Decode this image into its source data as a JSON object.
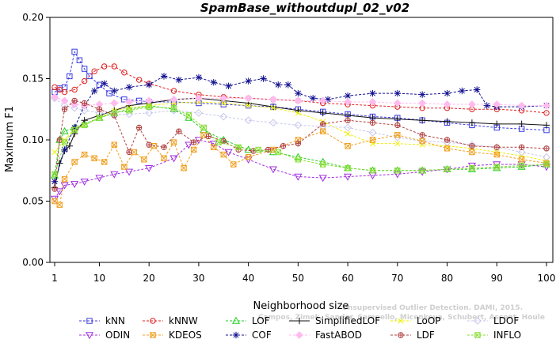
{
  "chart_data": {
    "type": "line",
    "title": "SpamBase_withoutdupl_02_v02",
    "xlabel": "Neighborhood size",
    "ylabel": "Maximum F1",
    "xlim": [
      1,
      100
    ],
    "ylim": [
      0.0,
      0.2
    ],
    "xticks": [
      1,
      10,
      20,
      30,
      40,
      50,
      60,
      70,
      80,
      90,
      100
    ],
    "yticks": [
      "0.00",
      "0.05",
      "0.10",
      "0.15",
      "0.20"
    ],
    "grid": false,
    "legend_position": "bottom",
    "watermark": [
      "Unsupervised Outlier Detection. DAMI, 2015.",
      "Campos, Zimek, Sander, Campello, Micenkova, Schubert, Assent, Houle"
    ],
    "series": [
      {
        "name": "kNN",
        "color": "#3a3adf",
        "marker": "square",
        "dash": "3,2",
        "x": [
          1,
          2,
          3,
          4,
          5,
          6,
          7,
          8,
          10,
          12,
          15,
          18,
          20,
          25,
          30,
          35,
          40,
          45,
          50,
          55,
          60,
          65,
          70,
          75,
          80,
          85,
          90,
          95,
          100
        ],
        "y": [
          0.139,
          0.142,
          0.143,
          0.152,
          0.172,
          0.165,
          0.158,
          0.152,
          0.145,
          0.138,
          0.133,
          0.132,
          0.131,
          0.131,
          0.13,
          0.129,
          0.128,
          0.127,
          0.125,
          0.123,
          0.121,
          0.119,
          0.118,
          0.116,
          0.114,
          0.112,
          0.11,
          0.109,
          0.108
        ]
      },
      {
        "name": "kNNW",
        "color": "#e02020",
        "marker": "circle",
        "dash": "3,2",
        "x": [
          1,
          2,
          3,
          5,
          7,
          9,
          11,
          13,
          15,
          18,
          20,
          25,
          30,
          35,
          40,
          45,
          50,
          55,
          60,
          65,
          70,
          75,
          80,
          85,
          90,
          95,
          100
        ],
        "y": [
          0.143,
          0.141,
          0.139,
          0.141,
          0.148,
          0.156,
          0.16,
          0.16,
          0.155,
          0.149,
          0.146,
          0.14,
          0.137,
          0.135,
          0.134,
          0.133,
          0.132,
          0.13,
          0.129,
          0.128,
          0.127,
          0.126,
          0.126,
          0.125,
          0.125,
          0.124,
          0.122
        ]
      },
      {
        "name": "LOF",
        "color": "#22cc22",
        "marker": "triangle",
        "dash": "3,2",
        "x": [
          1,
          2,
          3,
          5,
          7,
          10,
          13,
          16,
          20,
          25,
          28,
          31,
          35,
          40,
          45,
          50,
          55,
          60,
          65,
          70,
          75,
          80,
          85,
          90,
          95,
          100
        ],
        "y": [
          0.071,
          0.1,
          0.107,
          0.11,
          0.113,
          0.118,
          0.122,
          0.125,
          0.128,
          0.125,
          0.118,
          0.108,
          0.1,
          0.092,
          0.09,
          0.086,
          0.082,
          0.077,
          0.075,
          0.075,
          0.075,
          0.076,
          0.076,
          0.077,
          0.078,
          0.08
        ]
      },
      {
        "name": "SimplifiedLOF",
        "color": "#111111",
        "marker": "plus",
        "dash": "",
        "x": [
          1,
          2,
          3,
          4,
          5,
          7,
          10,
          13,
          16,
          20,
          25,
          30,
          35,
          40,
          45,
          50,
          55,
          60,
          65,
          70,
          75,
          80,
          85,
          90,
          95,
          100
        ],
        "y": [
          0.061,
          0.081,
          0.091,
          0.095,
          0.105,
          0.116,
          0.12,
          0.124,
          0.128,
          0.13,
          0.133,
          0.134,
          0.132,
          0.13,
          0.127,
          0.124,
          0.122,
          0.12,
          0.118,
          0.117,
          0.116,
          0.115,
          0.114,
          0.113,
          0.113,
          0.112
        ]
      },
      {
        "name": "LoOP",
        "color": "#eeee00",
        "marker": "x",
        "dash": "3,2",
        "x": [
          1,
          3,
          5,
          7,
          10,
          13,
          16,
          20,
          25,
          30,
          35,
          40,
          45,
          50,
          55,
          60,
          65,
          70,
          75,
          80,
          85,
          90,
          95,
          100
        ],
        "y": [
          0.09,
          0.1,
          0.109,
          0.112,
          0.118,
          0.124,
          0.126,
          0.128,
          0.13,
          0.131,
          0.13,
          0.128,
          0.126,
          0.122,
          0.115,
          0.105,
          0.097,
          0.097,
          0.096,
          0.095,
          0.093,
          0.09,
          0.087,
          0.083
        ]
      },
      {
        "name": "LDOF",
        "color": "#c8c8ee",
        "marker": "diamond",
        "dash": "3,2",
        "x": [
          1,
          3,
          5,
          7,
          10,
          13,
          16,
          20,
          25,
          30,
          35,
          40,
          45,
          50,
          55,
          60,
          65,
          70,
          75,
          80,
          85,
          90,
          95,
          100
        ],
        "y": [
          0.134,
          0.128,
          0.126,
          0.124,
          0.122,
          0.121,
          0.121,
          0.122,
          0.124,
          0.122,
          0.119,
          0.116,
          0.114,
          0.112,
          0.111,
          0.11,
          0.106,
          0.102,
          0.099,
          0.098,
          0.096,
          0.094,
          0.09,
          0.086
        ]
      },
      {
        "name": "ODIN",
        "color": "#a030e0",
        "marker": "triangle-down",
        "dash": "3,2",
        "x": [
          1,
          2,
          3,
          5,
          7,
          10,
          13,
          16,
          20,
          25,
          28,
          30,
          33,
          36,
          40,
          45,
          50,
          55,
          60,
          65,
          70,
          75,
          80,
          85,
          90,
          95,
          100
        ],
        "y": [
          0.052,
          0.058,
          0.063,
          0.064,
          0.066,
          0.069,
          0.072,
          0.074,
          0.077,
          0.085,
          0.096,
          0.1,
          0.097,
          0.09,
          0.084,
          0.076,
          0.07,
          0.069,
          0.07,
          0.071,
          0.072,
          0.074,
          0.076,
          0.079,
          0.08,
          0.08,
          0.078
        ]
      },
      {
        "name": "KDEOS",
        "color": "#f0a020",
        "marker": "square-x",
        "dash": "3,2",
        "x": [
          1,
          2,
          3,
          5,
          7,
          9,
          11,
          13,
          15,
          17,
          19,
          21,
          23,
          25,
          27,
          29,
          31,
          33,
          35,
          37,
          40,
          45,
          50,
          55,
          60,
          65,
          70,
          75,
          80,
          85,
          90,
          95,
          100
        ],
        "y": [
          0.05,
          0.047,
          0.068,
          0.082,
          0.088,
          0.085,
          0.082,
          0.096,
          0.078,
          0.09,
          0.084,
          0.095,
          0.085,
          0.098,
          0.077,
          0.092,
          0.104,
          0.094,
          0.088,
          0.08,
          0.086,
          0.092,
          0.1,
          0.107,
          0.095,
          0.1,
          0.104,
          0.099,
          0.093,
          0.09,
          0.088,
          0.084,
          0.081
        ]
      },
      {
        "name": "COF",
        "color": "#101090",
        "marker": "asterisk",
        "dash": "3,2",
        "x": [
          1,
          3,
          5,
          7,
          9,
          11,
          13,
          16,
          20,
          23,
          26,
          30,
          33,
          36,
          40,
          43,
          46,
          48,
          50,
          53,
          56,
          60,
          65,
          70,
          75,
          80,
          83,
          86,
          88,
          90,
          95,
          100
        ],
        "y": [
          0.066,
          0.092,
          0.11,
          0.128,
          0.14,
          0.146,
          0.14,
          0.143,
          0.145,
          0.152,
          0.149,
          0.151,
          0.147,
          0.144,
          0.148,
          0.15,
          0.145,
          0.145,
          0.138,
          0.134,
          0.133,
          0.136,
          0.138,
          0.138,
          0.137,
          0.138,
          0.14,
          0.141,
          0.128,
          0.127,
          0.127,
          0.128
        ]
      },
      {
        "name": "FastABOD",
        "color": "#ffbbee",
        "marker": "diamond-filled",
        "dash": "3,2",
        "x": [
          1,
          3,
          5,
          7,
          10,
          13,
          16,
          20,
          25,
          30,
          35,
          40,
          45,
          50,
          55,
          60,
          65,
          70,
          75,
          80,
          85,
          90,
          95,
          100
        ],
        "y": [
          0.135,
          0.132,
          0.129,
          0.128,
          0.129,
          0.13,
          0.131,
          0.132,
          0.133,
          0.134,
          0.134,
          0.134,
          0.133,
          0.132,
          0.132,
          0.131,
          0.131,
          0.13,
          0.13,
          0.129,
          0.129,
          0.129,
          0.128,
          0.128
        ]
      },
      {
        "name": "LDF",
        "color": "#b04040",
        "marker": "circle-plus",
        "dash": "3,2",
        "x": [
          1,
          2,
          3,
          5,
          7,
          10,
          13,
          16,
          18,
          20,
          23,
          26,
          29,
          32,
          35,
          38,
          41,
          44,
          47,
          50,
          55,
          60,
          65,
          70,
          75,
          80,
          85,
          90,
          95,
          100
        ],
        "y": [
          0.06,
          0.1,
          0.125,
          0.132,
          0.13,
          0.125,
          0.12,
          0.09,
          0.11,
          0.096,
          0.094,
          0.107,
          0.098,
          0.103,
          0.099,
          0.092,
          0.091,
          0.092,
          0.095,
          0.097,
          0.113,
          0.116,
          0.114,
          0.112,
          0.104,
          0.1,
          0.095,
          0.094,
          0.094,
          0.093
        ]
      },
      {
        "name": "INFLO",
        "color": "#88dd33",
        "marker": "square-x",
        "dash": "3,2",
        "x": [
          1,
          3,
          5,
          7,
          10,
          13,
          16,
          20,
          25,
          28,
          31,
          34,
          38,
          42,
          46,
          50,
          55,
          60,
          65,
          70,
          75,
          80,
          85,
          90,
          95,
          100
        ],
        "y": [
          0.072,
          0.098,
          0.108,
          0.112,
          0.118,
          0.122,
          0.124,
          0.127,
          0.126,
          0.12,
          0.11,
          0.098,
          0.094,
          0.092,
          0.09,
          0.084,
          0.08,
          0.077,
          0.075,
          0.075,
          0.075,
          0.076,
          0.077,
          0.078,
          0.079,
          0.08
        ]
      }
    ]
  }
}
